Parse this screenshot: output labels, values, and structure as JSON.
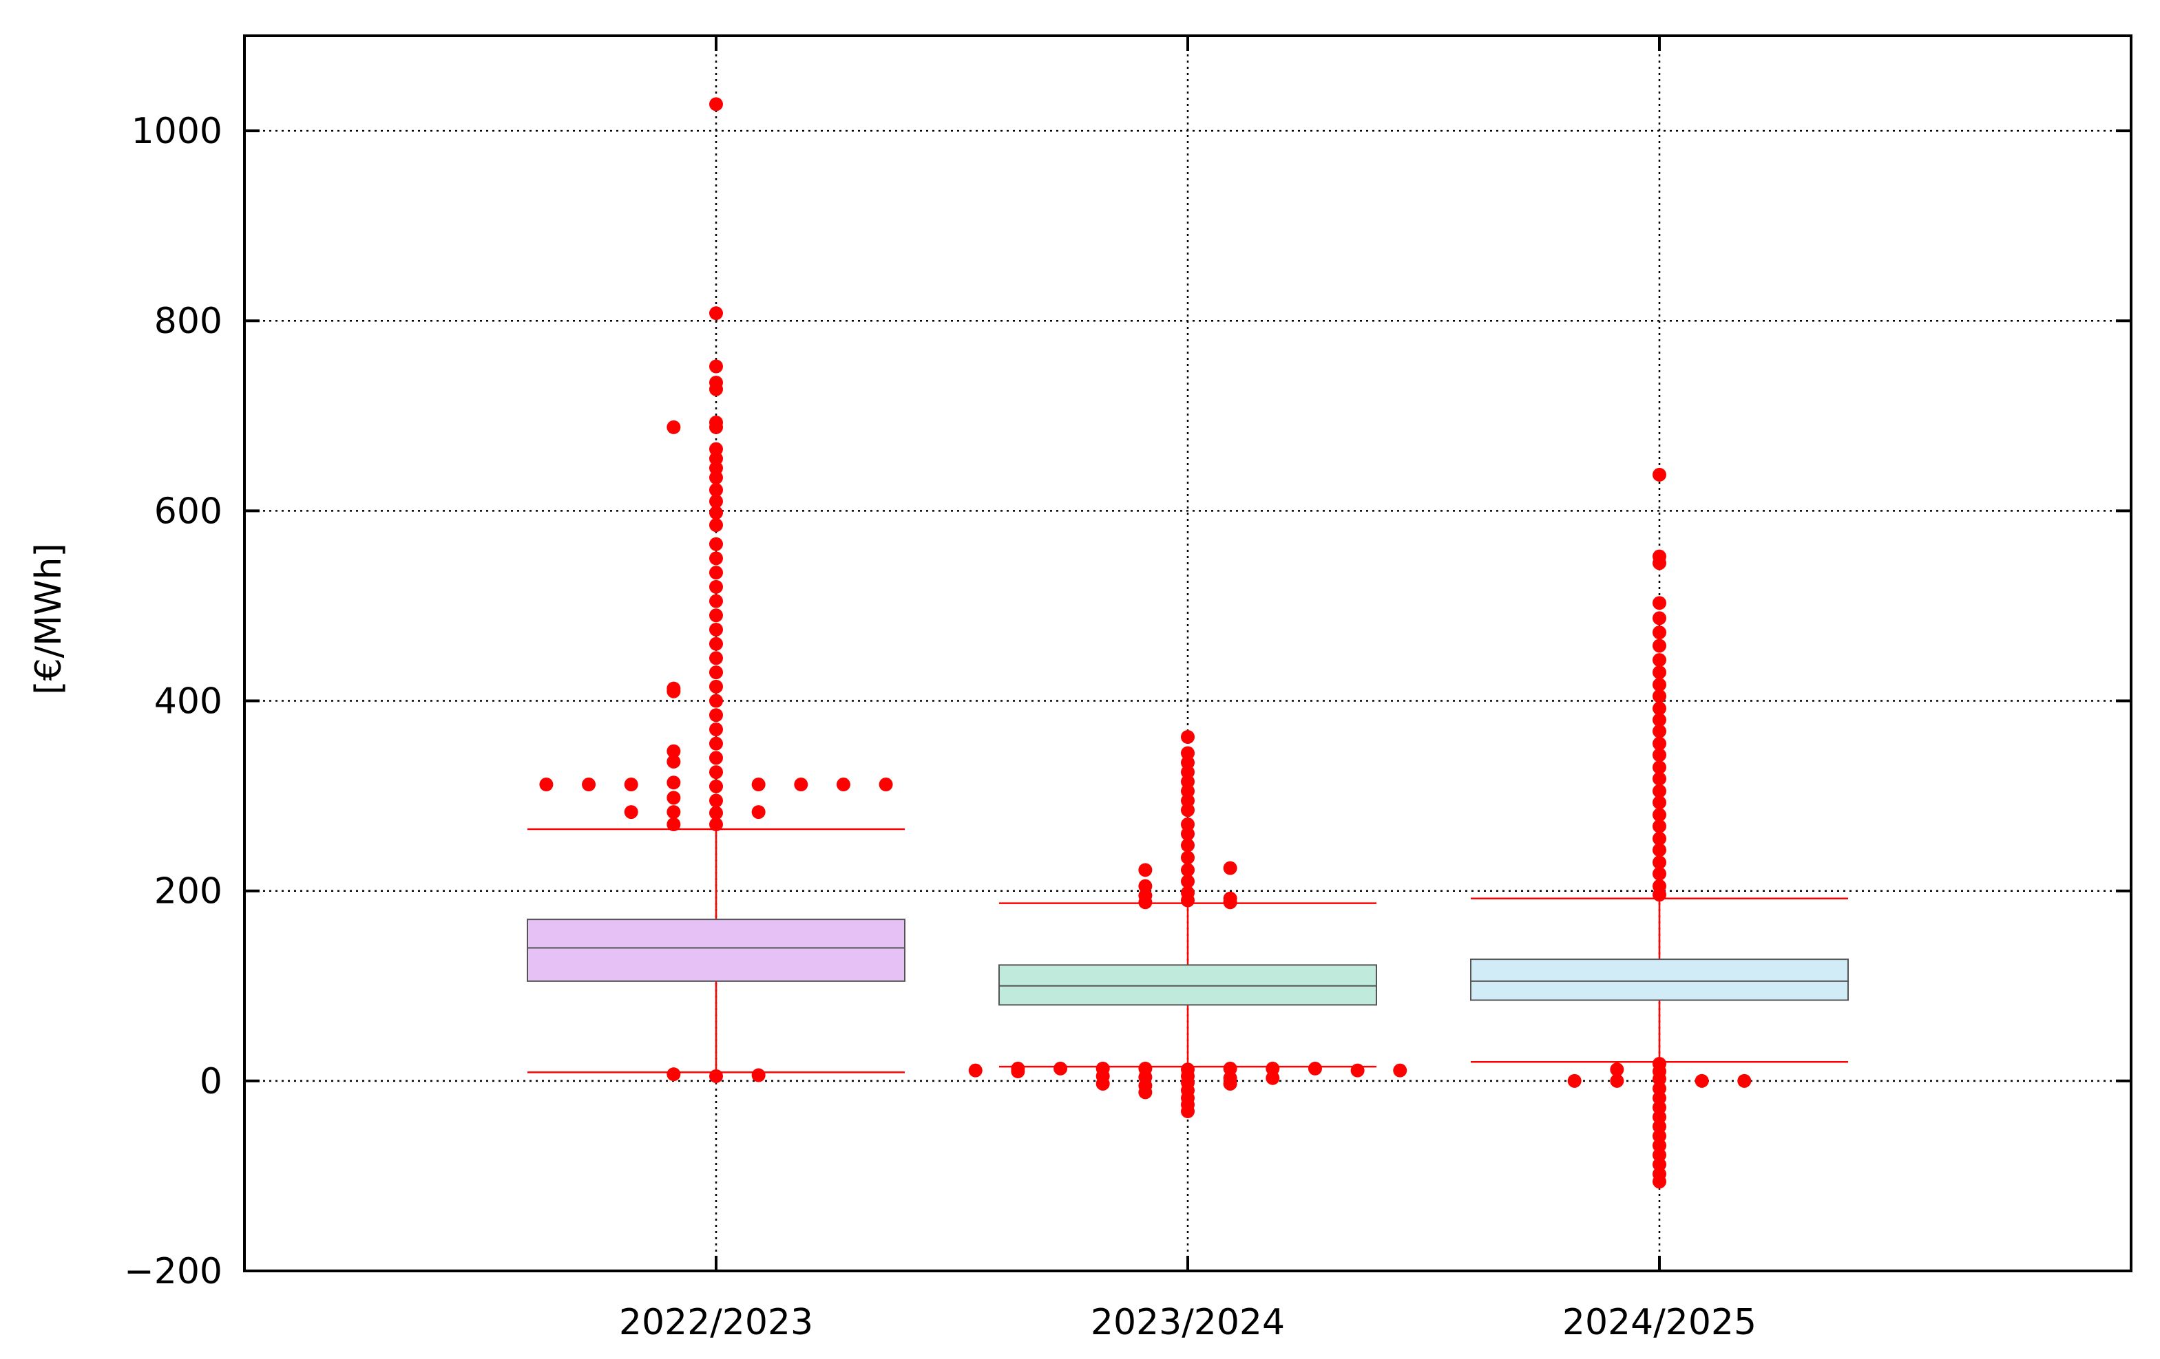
{
  "chart_data": {
    "type": "box",
    "ylabel": "[€/MWh]",
    "ylim": [
      -200,
      1100
    ],
    "yticks": [
      -200,
      0,
      200,
      400,
      600,
      800,
      1000
    ],
    "ytick_labels": [
      "−200",
      "0",
      "200",
      "400",
      "600",
      "800",
      "1000"
    ],
    "categories": [
      "2022/2023",
      "2023/2024",
      "2024/2025"
    ],
    "grid": true,
    "colors": {
      "box_fills": [
        "#e5c1f5",
        "#c0eadb",
        "#d2ecf7"
      ],
      "outlier": "#ff0000",
      "whisker": "#ff0000",
      "grid": "#000000"
    },
    "boxes": [
      {
        "category": "2022/2023",
        "q1": 105,
        "median": 140,
        "q3": 170,
        "whisker_low": 9,
        "whisker_high": 265,
        "outliers": [
          {
            "x": 0,
            "y": 1028
          },
          {
            "x": 0,
            "y": 808
          },
          {
            "x": 0,
            "y": 752
          },
          {
            "x": 0,
            "y": 735
          },
          {
            "x": 0,
            "y": 728
          },
          {
            "x": 0,
            "y": 693
          },
          {
            "x": 0,
            "y": 688
          },
          {
            "x": 0,
            "y": 665
          },
          {
            "x": 0,
            "y": 655
          },
          {
            "x": 0,
            "y": 645
          },
          {
            "x": 0,
            "y": 635
          },
          {
            "x": 0,
            "y": 622
          },
          {
            "x": 0,
            "y": 610
          },
          {
            "x": 0,
            "y": 598
          },
          {
            "x": 0,
            "y": 585
          },
          {
            "x": 0,
            "y": 565
          },
          {
            "x": 0,
            "y": 550
          },
          {
            "x": 0,
            "y": 535
          },
          {
            "x": 0,
            "y": 520
          },
          {
            "x": 0,
            "y": 505
          },
          {
            "x": 0,
            "y": 490
          },
          {
            "x": 0,
            "y": 475
          },
          {
            "x": 0,
            "y": 460
          },
          {
            "x": 0,
            "y": 445
          },
          {
            "x": 0,
            "y": 430
          },
          {
            "x": 0,
            "y": 415
          },
          {
            "x": 0,
            "y": 400
          },
          {
            "x": 0,
            "y": 385
          },
          {
            "x": 0,
            "y": 370
          },
          {
            "x": 0,
            "y": 355
          },
          {
            "x": 0,
            "y": 340
          },
          {
            "x": 0,
            "y": 325
          },
          {
            "x": 0,
            "y": 310
          },
          {
            "x": 0,
            "y": 295
          },
          {
            "x": 0,
            "y": 282
          },
          {
            "x": 0,
            "y": 270
          },
          {
            "x": -0.09,
            "y": 688
          },
          {
            "x": -0.09,
            "y": 413
          },
          {
            "x": -0.09,
            "y": 410
          },
          {
            "x": -0.09,
            "y": 347
          },
          {
            "x": -0.09,
            "y": 336
          },
          {
            "x": -0.09,
            "y": 314
          },
          {
            "x": -0.09,
            "y": 298
          },
          {
            "x": -0.09,
            "y": 283
          },
          {
            "x": -0.09,
            "y": 270
          },
          {
            "x": -0.36,
            "y": 312
          },
          {
            "x": -0.27,
            "y": 312
          },
          {
            "x": -0.18,
            "y": 312
          },
          {
            "x": 0.09,
            "y": 312
          },
          {
            "x": 0.18,
            "y": 312
          },
          {
            "x": 0.27,
            "y": 312
          },
          {
            "x": 0.36,
            "y": 312
          },
          {
            "x": -0.18,
            "y": 283
          },
          {
            "x": 0.09,
            "y": 283
          },
          {
            "x": -0.09,
            "y": 7
          },
          {
            "x": 0,
            "y": 5
          },
          {
            "x": 0.09,
            "y": 6
          }
        ]
      },
      {
        "category": "2023/2024",
        "q1": 80,
        "median": 100,
        "q3": 122,
        "whisker_low": 15,
        "whisker_high": 187,
        "outliers": [
          {
            "x": 0,
            "y": 362
          },
          {
            "x": 0,
            "y": 345
          },
          {
            "x": 0,
            "y": 335
          },
          {
            "x": 0,
            "y": 325
          },
          {
            "x": 0,
            "y": 315
          },
          {
            "x": 0,
            "y": 305
          },
          {
            "x": 0,
            "y": 295
          },
          {
            "x": 0,
            "y": 285
          },
          {
            "x": 0,
            "y": 270
          },
          {
            "x": 0,
            "y": 260
          },
          {
            "x": 0,
            "y": 248
          },
          {
            "x": 0,
            "y": 235
          },
          {
            "x": 0,
            "y": 222
          },
          {
            "x": 0,
            "y": 210
          },
          {
            "x": 0,
            "y": 198
          },
          {
            "x": 0,
            "y": 190
          },
          {
            "x": -0.09,
            "y": 222
          },
          {
            "x": -0.09,
            "y": 205
          },
          {
            "x": -0.09,
            "y": 195
          },
          {
            "x": -0.09,
            "y": 188
          },
          {
            "x": 0.09,
            "y": 224
          },
          {
            "x": 0.09,
            "y": 192
          },
          {
            "x": 0.09,
            "y": 188
          },
          {
            "x": -0.45,
            "y": 11
          },
          {
            "x": -0.36,
            "y": 13
          },
          {
            "x": -0.27,
            "y": 13
          },
          {
            "x": -0.18,
            "y": 13
          },
          {
            "x": -0.09,
            "y": 13
          },
          {
            "x": 0.09,
            "y": 13
          },
          {
            "x": 0.18,
            "y": 13
          },
          {
            "x": 0.27,
            "y": 13
          },
          {
            "x": 0.36,
            "y": 11
          },
          {
            "x": 0.45,
            "y": 11
          },
          {
            "x": -0.36,
            "y": 10
          },
          {
            "x": -0.18,
            "y": 5
          },
          {
            "x": -0.18,
            "y": -3
          },
          {
            "x": -0.09,
            "y": 4
          },
          {
            "x": -0.09,
            "y": -5
          },
          {
            "x": -0.09,
            "y": -12
          },
          {
            "x": 0.09,
            "y": 3
          },
          {
            "x": 0.09,
            "y": -3
          },
          {
            "x": 0.18,
            "y": 3
          },
          {
            "x": 0,
            "y": 12
          },
          {
            "x": 0,
            "y": 5
          },
          {
            "x": 0,
            "y": -2
          },
          {
            "x": 0,
            "y": -10
          },
          {
            "x": 0,
            "y": -18
          },
          {
            "x": 0,
            "y": -25
          },
          {
            "x": 0,
            "y": -32
          }
        ]
      },
      {
        "category": "2024/2025",
        "q1": 85,
        "median": 105,
        "q3": 128,
        "whisker_low": 20,
        "whisker_high": 192,
        "outliers": [
          {
            "x": 0,
            "y": 638
          },
          {
            "x": 0,
            "y": 552
          },
          {
            "x": 0,
            "y": 545
          },
          {
            "x": 0,
            "y": 503
          },
          {
            "x": 0,
            "y": 487
          },
          {
            "x": 0,
            "y": 472
          },
          {
            "x": 0,
            "y": 458
          },
          {
            "x": 0,
            "y": 443
          },
          {
            "x": 0,
            "y": 430
          },
          {
            "x": 0,
            "y": 417
          },
          {
            "x": 0,
            "y": 405
          },
          {
            "x": 0,
            "y": 392
          },
          {
            "x": 0,
            "y": 380
          },
          {
            "x": 0,
            "y": 368
          },
          {
            "x": 0,
            "y": 355
          },
          {
            "x": 0,
            "y": 343
          },
          {
            "x": 0,
            "y": 330
          },
          {
            "x": 0,
            "y": 318
          },
          {
            "x": 0,
            "y": 305
          },
          {
            "x": 0,
            "y": 293
          },
          {
            "x": 0,
            "y": 280
          },
          {
            "x": 0,
            "y": 268
          },
          {
            "x": 0,
            "y": 255
          },
          {
            "x": 0,
            "y": 243
          },
          {
            "x": 0,
            "y": 230
          },
          {
            "x": 0,
            "y": 218
          },
          {
            "x": 0,
            "y": 205
          },
          {
            "x": 0,
            "y": 196
          },
          {
            "x": 0,
            "y": 18
          },
          {
            "x": 0,
            "y": 10
          },
          {
            "x": 0,
            "y": 2
          },
          {
            "x": 0,
            "y": -8
          },
          {
            "x": 0,
            "y": -18
          },
          {
            "x": 0,
            "y": -28
          },
          {
            "x": 0,
            "y": -38
          },
          {
            "x": 0,
            "y": -48
          },
          {
            "x": 0,
            "y": -58
          },
          {
            "x": 0,
            "y": -68
          },
          {
            "x": 0,
            "y": -78
          },
          {
            "x": 0,
            "y": -88
          },
          {
            "x": 0,
            "y": -98
          },
          {
            "x": 0,
            "y": -106
          },
          {
            "x": -0.18,
            "y": 0
          },
          {
            "x": -0.09,
            "y": 0
          },
          {
            "x": -0.09,
            "y": 12
          },
          {
            "x": 0.09,
            "y": 0
          },
          {
            "x": 0.18,
            "y": 0
          }
        ]
      }
    ]
  }
}
